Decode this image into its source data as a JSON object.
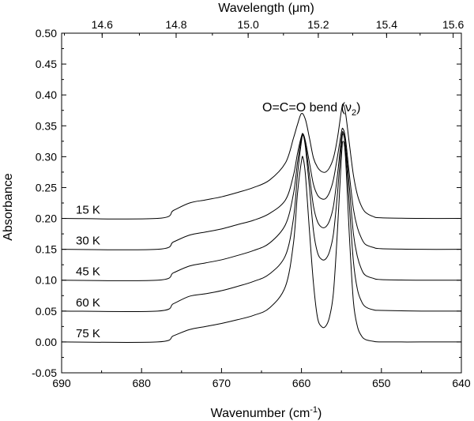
{
  "chart_data": {
    "type": "line",
    "title": "",
    "annotation": {
      "main": "O=C=O bend (",
      "greek": "ν",
      "subscript": "2",
      "close": ")"
    },
    "xlabel": {
      "main": "Wavenumber (cm",
      "superscript": "-1",
      "close": ")"
    },
    "x2label": {
      "main": "Wavelength (",
      "greek": "μ",
      "close": "m)"
    },
    "ylabel": "Absorbance",
    "xlim": [
      690,
      640
    ],
    "ylim": [
      -0.05,
      0.5
    ],
    "xticks": [
      690,
      680,
      670,
      660,
      650,
      640
    ],
    "yticks": [
      -0.05,
      0.0,
      0.05,
      0.1,
      0.15,
      0.2,
      0.25,
      0.3,
      0.35,
      0.4,
      0.45,
      0.5
    ],
    "ytick_labels": [
      "-0.05",
      "0.00",
      "0.05",
      "0.10",
      "0.15",
      "0.20",
      "0.25",
      "0.30",
      "0.35",
      "0.40",
      "0.45",
      "0.50"
    ],
    "x2ticks": [
      14.6,
      14.8,
      15.0,
      15.2,
      15.4,
      15.6
    ],
    "x2tick_labels": [
      "14.6",
      "14.8",
      "15.0",
      "15.2",
      "15.4",
      "15.6"
    ],
    "series": [
      {
        "name": "15 K",
        "x": [
          690,
          678,
          676,
          674,
          672,
          670,
          668,
          666,
          664,
          662,
          661,
          660.5,
          660,
          659.5,
          659,
          658.5,
          658,
          657.5,
          657,
          656.5,
          656,
          655.5,
          655,
          654.8,
          654.5,
          654,
          653.5,
          653,
          652.5,
          652,
          651,
          650,
          645,
          640
        ],
        "y": [
          0.2,
          0.2,
          0.213,
          0.225,
          0.23,
          0.235,
          0.242,
          0.25,
          0.262,
          0.29,
          0.33,
          0.352,
          0.37,
          0.36,
          0.33,
          0.298,
          0.283,
          0.276,
          0.275,
          0.282,
          0.298,
          0.33,
          0.375,
          0.385,
          0.372,
          0.32,
          0.27,
          0.238,
          0.22,
          0.21,
          0.203,
          0.201,
          0.2,
          0.2
        ]
      },
      {
        "name": "30 K",
        "x": [
          690,
          678,
          676,
          674,
          672,
          670,
          668,
          666,
          664,
          662,
          661,
          660.5,
          660,
          659.8,
          659.5,
          659,
          658.5,
          658,
          657.5,
          657,
          656.5,
          656,
          655.5,
          655,
          654.8,
          654.5,
          654,
          653.5,
          653,
          652.5,
          652,
          651,
          650,
          645,
          640
        ],
        "y": [
          0.15,
          0.15,
          0.162,
          0.173,
          0.178,
          0.183,
          0.19,
          0.197,
          0.208,
          0.23,
          0.27,
          0.305,
          0.333,
          0.337,
          0.325,
          0.29,
          0.255,
          0.238,
          0.232,
          0.232,
          0.242,
          0.263,
          0.3,
          0.34,
          0.345,
          0.33,
          0.27,
          0.215,
          0.185,
          0.168,
          0.158,
          0.153,
          0.151,
          0.15,
          0.15
        ]
      },
      {
        "name": "45 K",
        "x": [
          690,
          678,
          676,
          674,
          672,
          670,
          668,
          666,
          664,
          662,
          661,
          660.5,
          660,
          659.8,
          659.5,
          659,
          658.5,
          658,
          657.5,
          657,
          656.5,
          656,
          655.5,
          655,
          654.8,
          654.5,
          654,
          653.5,
          653,
          652.5,
          652,
          651,
          650,
          645,
          640
        ],
        "y": [
          0.1,
          0.1,
          0.112,
          0.123,
          0.128,
          0.133,
          0.14,
          0.148,
          0.16,
          0.19,
          0.24,
          0.29,
          0.33,
          0.335,
          0.32,
          0.27,
          0.22,
          0.195,
          0.186,
          0.186,
          0.196,
          0.22,
          0.27,
          0.33,
          0.34,
          0.32,
          0.25,
          0.175,
          0.138,
          0.118,
          0.108,
          0.103,
          0.101,
          0.1,
          0.1
        ]
      },
      {
        "name": "60 K",
        "x": [
          690,
          678,
          676,
          674,
          672,
          670,
          668,
          666,
          664,
          662,
          661,
          660.5,
          660,
          659.8,
          659.5,
          659,
          658.5,
          658,
          657.5,
          657,
          656.5,
          656,
          655.5,
          655,
          654.8,
          654.5,
          654,
          653.5,
          653,
          652.5,
          652,
          651,
          650,
          645,
          640
        ],
        "y": [
          0.05,
          0.05,
          0.062,
          0.074,
          0.078,
          0.083,
          0.09,
          0.098,
          0.11,
          0.14,
          0.2,
          0.27,
          0.325,
          0.335,
          0.315,
          0.25,
          0.18,
          0.145,
          0.134,
          0.134,
          0.146,
          0.175,
          0.24,
          0.32,
          0.337,
          0.315,
          0.22,
          0.13,
          0.085,
          0.066,
          0.057,
          0.052,
          0.051,
          0.05,
          0.05
        ]
      },
      {
        "name": "75 K",
        "x": [
          690,
          678,
          676,
          674,
          672,
          670,
          668,
          666,
          664,
          662,
          661,
          660.5,
          660,
          659.8,
          659.5,
          659,
          658.5,
          658,
          657.5,
          657,
          656.5,
          656,
          655.5,
          655,
          654.8,
          654.5,
          654,
          653.5,
          653,
          652.5,
          652,
          651,
          650,
          645,
          640
        ],
        "y": [
          0.0,
          0.0,
          0.01,
          0.02,
          0.025,
          0.03,
          0.036,
          0.043,
          0.055,
          0.09,
          0.16,
          0.24,
          0.293,
          0.298,
          0.27,
          0.18,
          0.095,
          0.04,
          0.025,
          0.025,
          0.04,
          0.08,
          0.18,
          0.3,
          0.325,
          0.3,
          0.17,
          0.065,
          0.025,
          0.01,
          0.004,
          0.001,
          0.0,
          0.0,
          0.0
        ]
      }
    ]
  }
}
